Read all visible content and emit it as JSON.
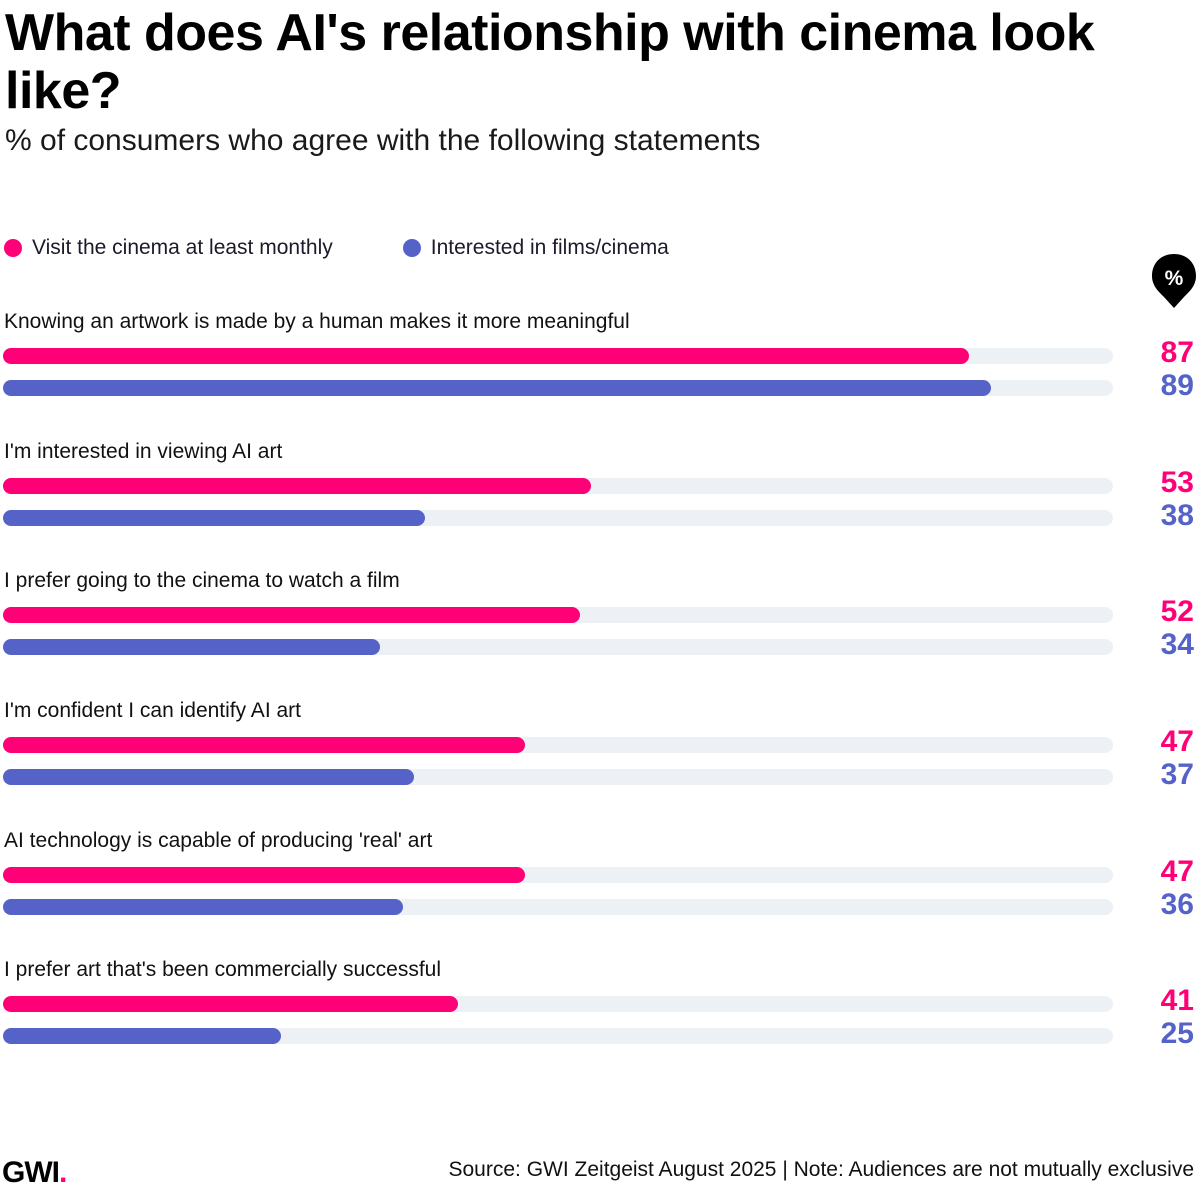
{
  "header": {
    "title": "What does AI's relationship with cinema look like?",
    "subtitle": "% of consumers who agree with the following statements"
  },
  "legend": [
    {
      "label": "Visit the cinema at least monthly",
      "color": "#ff0077"
    },
    {
      "label": "Interested in films/cinema",
      "color": "#5563c9"
    }
  ],
  "unit_badge": "%",
  "footer": {
    "logo": "GWI",
    "logo_dot": ".",
    "source": "Source: GWI Zeitgeist August 2025 | Note: Audiences are not mutually exclusive"
  },
  "colors": {
    "pink": "#ff0077",
    "blue": "#5563c9",
    "track": "#edf0f5"
  },
  "rows": [
    {
      "label": "Knowing an artwork is made by a human makes it more meaningful",
      "monthly": "87",
      "interested": "89"
    },
    {
      "label": "I'm interested in viewing AI art",
      "monthly": "53",
      "interested": "38"
    },
    {
      "label": "I prefer going to the cinema to watch a film",
      "monthly": "52",
      "interested": "34"
    },
    {
      "label": "I'm confident I can identify AI art",
      "monthly": "47",
      "interested": "37"
    },
    {
      "label": "AI technology is capable of producing 'real' art",
      "monthly": "47",
      "interested": "36"
    },
    {
      "label": "I prefer art that's been commercially successful",
      "monthly": "41",
      "interested": "25"
    }
  ],
  "chart_data": {
    "type": "bar",
    "orientation": "horizontal",
    "title": "What does AI's relationship with cinema look like?",
    "subtitle": "% of consumers who agree with the following statements",
    "categories": [
      "Knowing an artwork is made by a human makes it more meaningful",
      "I'm interested in viewing AI art",
      "I prefer going to the cinema to watch a film",
      "I'm confident I can identify AI art",
      "AI technology is capable of producing 'real' art",
      "I prefer art that's been commercially successful"
    ],
    "series": [
      {
        "name": "Visit the cinema at least monthly",
        "color": "#ff0077",
        "values": [
          87,
          53,
          52,
          47,
          47,
          41
        ]
      },
      {
        "name": "Interested in films/cinema",
        "color": "#5563c9",
        "values": [
          89,
          38,
          34,
          37,
          36,
          25
        ]
      }
    ],
    "xlabel": "",
    "ylabel": "%",
    "xlim": [
      0,
      100
    ],
    "grid": false,
    "legend_position": "top-left",
    "source": "Source: GWI Zeitgeist August 2025 | Note: Audiences are not mutually exclusive"
  }
}
